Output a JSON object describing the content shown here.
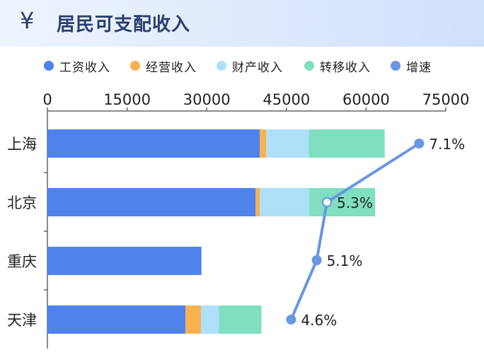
{
  "header": {
    "icon": "yen-icon",
    "symbol": "¥",
    "title": "居民可支配收入"
  },
  "colors": {
    "wage": "#4f82ea",
    "business": "#f7b14f",
    "property": "#aee0fa",
    "transfer": "#7fdfc0",
    "growth": "#6897e2",
    "axis": "#666666",
    "text": "#222222"
  },
  "chart_data": {
    "type": "bar",
    "orientation": "horizontal",
    "stacked": true,
    "categories": [
      "上海",
      "北京",
      "重庆",
      "天津"
    ],
    "series": [
      {
        "name": "工资收入",
        "key": "wage",
        "values": [
          40000,
          39200,
          29000,
          26000
        ]
      },
      {
        "name": "经营收入",
        "key": "business",
        "values": [
          1200,
          800,
          0,
          2900
        ]
      },
      {
        "name": "财产收入",
        "key": "property",
        "values": [
          8000,
          9300,
          0,
          3400
        ]
      },
      {
        "name": "转移收入",
        "key": "transfer",
        "values": [
          14300,
          12400,
          0,
          8000
        ]
      }
    ],
    "line_series": {
      "name": "增速",
      "key": "growth",
      "values": [
        7.1,
        5.3,
        5.1,
        4.6
      ],
      "labels": [
        "7.1%",
        "5.3%",
        "5.1%",
        "4.6%"
      ]
    },
    "xaxis": {
      "ticks": [
        0,
        15000,
        30000,
        45000,
        60000,
        75000
      ],
      "range": [
        0,
        75000
      ],
      "position": "top"
    },
    "grid": false,
    "legend": "top"
  }
}
